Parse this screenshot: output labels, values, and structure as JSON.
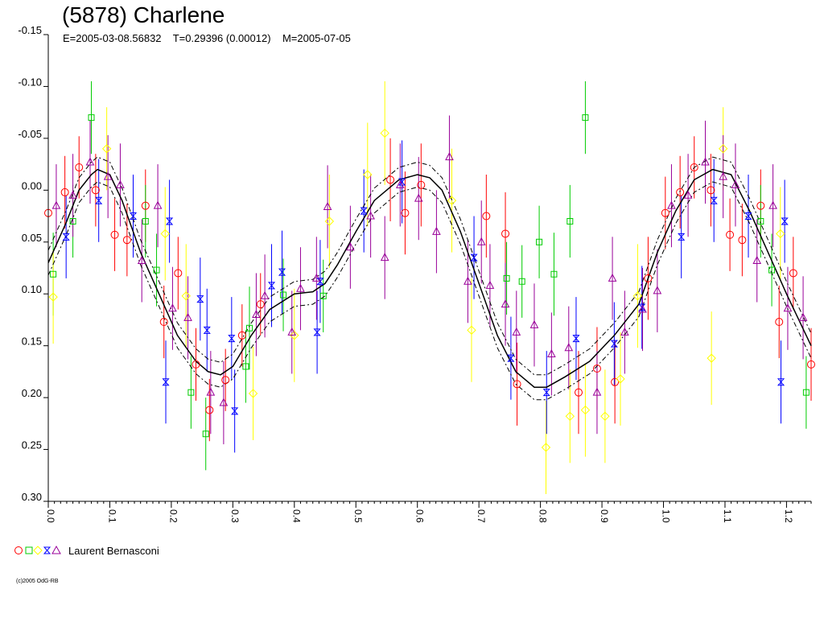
{
  "header": {
    "title": "(5878) Charlene",
    "subtitle": "E=2005-03-08.56832    T=0.29396 (0.00012)    M=2005-07-05"
  },
  "legend": {
    "label": "Laurent Bernasconi",
    "symbols": [
      "circle",
      "square",
      "diamond",
      "hourglass",
      "triangle"
    ]
  },
  "copyright": "(c)2005 OdG-RB",
  "colors": {
    "circle": "#ff0000",
    "square": "#00cc00",
    "diamond": "#ffff00",
    "hourglass": "#0000ff",
    "triangle": "#990099",
    "curve": "#000000"
  },
  "chart_data": {
    "type": "scatter",
    "title": "(5878) Charlene",
    "subtitle": "E=2005-03-08.56832    T=0.29396 (0.00012)    M=2005-07-05",
    "xlabel": "",
    "ylabel": "",
    "xlim": [
      0,
      1.24
    ],
    "ylim": [
      -0.15,
      0.3
    ],
    "y_inverted": true,
    "xticks": [
      "0.0",
      "0.1",
      "0.2",
      "0.3",
      "0.4",
      "0.5",
      "0.6",
      "0.7",
      "0.8",
      "0.9",
      "1.0",
      "1.1",
      "1.2"
    ],
    "yticks": [
      "-0.15",
      "-0.10",
      "-0.05",
      "0.00",
      "0.05",
      "0.10",
      "0.15",
      "0.20",
      "0.25",
      "0.30"
    ],
    "grid": false,
    "legend_position": "bottom-left",
    "fit_curve": {
      "x": [
        0.0,
        0.03,
        0.05,
        0.07,
        0.08,
        0.1,
        0.12,
        0.15,
        0.18,
        0.21,
        0.24,
        0.26,
        0.28,
        0.3,
        0.33,
        0.36,
        0.4,
        0.43,
        0.45,
        0.47,
        0.5,
        0.53,
        0.57,
        0.6,
        0.62,
        0.64,
        0.67,
        0.7,
        0.73,
        0.76,
        0.79,
        0.81,
        0.84,
        0.88,
        0.92,
        0.96,
        0.99,
        1.02,
        1.05,
        1.08,
        1.11,
        1.14,
        1.17,
        1.2,
        1.24
      ],
      "y": [
        0.07,
        0.03,
        0.0,
        -0.015,
        -0.02,
        -0.015,
        0.01,
        0.06,
        0.1,
        0.14,
        0.165,
        0.175,
        0.178,
        0.17,
        0.14,
        0.115,
        0.1,
        0.098,
        0.09,
        0.072,
        0.04,
        0.01,
        -0.01,
        -0.015,
        -0.012,
        0.0,
        0.04,
        0.09,
        0.14,
        0.175,
        0.19,
        0.19,
        0.18,
        0.165,
        0.14,
        0.11,
        0.06,
        0.02,
        -0.01,
        -0.02,
        -0.015,
        0.02,
        0.06,
        0.1,
        0.15
      ],
      "band": 0.012
    },
    "series": [
      {
        "name": "Laurent Bernasconi",
        "marker": "circle",
        "points": [
          {
            "x": 0.0,
            "y": 0.022,
            "e": 0.035
          },
          {
            "x": 0.027,
            "y": 0.002,
            "e": 0.035
          },
          {
            "x": 0.05,
            "y": -0.022,
            "e": 0.03
          },
          {
            "x": 0.077,
            "y": 0.0,
            "e": 0.035
          },
          {
            "x": 0.108,
            "y": 0.043,
            "e": 0.035
          },
          {
            "x": 0.128,
            "y": 0.048,
            "e": 0.035
          },
          {
            "x": 0.158,
            "y": 0.015,
            "e": 0.035
          },
          {
            "x": 0.188,
            "y": 0.127,
            "e": 0.035
          },
          {
            "x": 0.211,
            "y": 0.08,
            "e": 0.035
          },
          {
            "x": 0.24,
            "y": 0.168,
            "e": 0.035
          },
          {
            "x": 0.262,
            "y": 0.212,
            "e": 0.03
          },
          {
            "x": 0.288,
            "y": 0.183,
            "e": 0.03
          },
          {
            "x": 0.315,
            "y": 0.14,
            "e": 0.03
          },
          {
            "x": 0.345,
            "y": 0.11,
            "e": 0.03
          },
          {
            "x": 0.556,
            "y": -0.01,
            "e": 0.04
          },
          {
            "x": 0.58,
            "y": 0.022,
            "e": 0.04
          },
          {
            "x": 0.606,
            "y": -0.005,
            "e": 0.04
          },
          {
            "x": 0.712,
            "y": 0.025,
            "e": 0.04
          },
          {
            "x": 0.743,
            "y": 0.042,
            "e": 0.04
          },
          {
            "x": 0.762,
            "y": 0.187,
            "e": 0.04
          },
          {
            "x": 0.862,
            "y": 0.195,
            "e": 0.04
          },
          {
            "x": 0.892,
            "y": 0.172,
            "e": 0.04
          },
          {
            "x": 0.921,
            "y": 0.185,
            "e": 0.04
          },
          {
            "x": 0.975,
            "y": 0.085,
            "e": 0.04
          },
          {
            "x": 1.003,
            "y": 0.022,
            "e": 0.035
          },
          {
            "x": 1.027,
            "y": 0.002,
            "e": 0.035
          },
          {
            "x": 1.05,
            "y": -0.022,
            "e": 0.03
          },
          {
            "x": 1.077,
            "y": 0.0,
            "e": 0.035
          },
          {
            "x": 1.108,
            "y": 0.043,
            "e": 0.035
          },
          {
            "x": 1.128,
            "y": 0.048,
            "e": 0.035
          },
          {
            "x": 1.158,
            "y": 0.015,
            "e": 0.035
          },
          {
            "x": 1.188,
            "y": 0.127,
            "e": 0.035
          },
          {
            "x": 1.211,
            "y": 0.08,
            "e": 0.035
          },
          {
            "x": 1.24,
            "y": 0.168,
            "e": 0.035
          }
        ]
      },
      {
        "name": "Laurent Bernasconi",
        "marker": "square",
        "points": [
          {
            "x": 0.008,
            "y": 0.081,
            "e": 0.04
          },
          {
            "x": 0.04,
            "y": 0.03,
            "e": 0.035
          },
          {
            "x": 0.07,
            "y": -0.07,
            "e": 0.035
          },
          {
            "x": 0.158,
            "y": 0.03,
            "e": 0.035
          },
          {
            "x": 0.176,
            "y": 0.077,
            "e": 0.035
          },
          {
            "x": 0.232,
            "y": 0.195,
            "e": 0.035
          },
          {
            "x": 0.256,
            "y": 0.235,
            "e": 0.035
          },
          {
            "x": 0.321,
            "y": 0.17,
            "e": 0.035
          },
          {
            "x": 0.327,
            "y": 0.133,
            "e": 0.04
          },
          {
            "x": 0.382,
            "y": 0.101,
            "e": 0.035
          },
          {
            "x": 0.447,
            "y": 0.102,
            "e": 0.035
          },
          {
            "x": 0.745,
            "y": 0.085,
            "e": 0.035
          },
          {
            "x": 0.77,
            "y": 0.088,
            "e": 0.035
          },
          {
            "x": 0.798,
            "y": 0.05,
            "e": 0.035
          },
          {
            "x": 0.822,
            "y": 0.081,
            "e": 0.04
          },
          {
            "x": 0.848,
            "y": 0.03,
            "e": 0.035
          },
          {
            "x": 0.873,
            "y": -0.07,
            "e": 0.035
          },
          {
            "x": 1.158,
            "y": 0.03,
            "e": 0.035
          },
          {
            "x": 1.176,
            "y": 0.077,
            "e": 0.035
          },
          {
            "x": 1.232,
            "y": 0.195,
            "e": 0.035
          }
        ]
      },
      {
        "name": "Laurent Bernasconi",
        "marker": "diamond",
        "points": [
          {
            "x": 0.008,
            "y": 0.103,
            "e": 0.045
          },
          {
            "x": 0.095,
            "y": -0.04,
            "e": 0.04
          },
          {
            "x": 0.19,
            "y": 0.042,
            "e": 0.045
          },
          {
            "x": 0.224,
            "y": 0.102,
            "e": 0.05
          },
          {
            "x": 0.333,
            "y": 0.196,
            "e": 0.045
          },
          {
            "x": 0.4,
            "y": 0.14,
            "e": 0.045
          },
          {
            "x": 0.457,
            "y": 0.03,
            "e": 0.045
          },
          {
            "x": 0.519,
            "y": -0.015,
            "e": 0.05
          },
          {
            "x": 0.547,
            "y": -0.055,
            "e": 0.05
          },
          {
            "x": 0.656,
            "y": 0.01,
            "e": 0.05
          },
          {
            "x": 0.688,
            "y": 0.135,
            "e": 0.05
          },
          {
            "x": 0.809,
            "y": 0.248,
            "e": 0.045
          },
          {
            "x": 0.848,
            "y": 0.218,
            "e": 0.045
          },
          {
            "x": 0.873,
            "y": 0.212,
            "e": 0.045
          },
          {
            "x": 0.905,
            "y": 0.218,
            "e": 0.045
          },
          {
            "x": 0.93,
            "y": 0.182,
            "e": 0.045
          },
          {
            "x": 0.958,
            "y": 0.102,
            "e": 0.05
          },
          {
            "x": 1.078,
            "y": 0.162,
            "e": 0.045
          },
          {
            "x": 1.097,
            "y": -0.04,
            "e": 0.04
          },
          {
            "x": 1.19,
            "y": 0.042,
            "e": 0.045
          }
        ]
      },
      {
        "name": "Laurent Bernasconi",
        "marker": "hourglass",
        "points": [
          {
            "x": 0.029,
            "y": 0.045,
            "e": 0.04
          },
          {
            "x": 0.082,
            "y": 0.01,
            "e": 0.04
          },
          {
            "x": 0.138,
            "y": 0.025,
            "e": 0.04
          },
          {
            "x": 0.191,
            "y": 0.185,
            "e": 0.04
          },
          {
            "x": 0.197,
            "y": 0.03,
            "e": 0.04
          },
          {
            "x": 0.247,
            "y": 0.105,
            "e": 0.04
          },
          {
            "x": 0.258,
            "y": 0.135,
            "e": 0.04
          },
          {
            "x": 0.298,
            "y": 0.143,
            "e": 0.04
          },
          {
            "x": 0.303,
            "y": 0.213,
            "e": 0.04
          },
          {
            "x": 0.363,
            "y": 0.092,
            "e": 0.04
          },
          {
            "x": 0.38,
            "y": 0.079,
            "e": 0.04
          },
          {
            "x": 0.437,
            "y": 0.137,
            "e": 0.04
          },
          {
            "x": 0.442,
            "y": 0.088,
            "e": 0.04
          },
          {
            "x": 0.513,
            "y": 0.02,
            "e": 0.04
          },
          {
            "x": 0.575,
            "y": -0.008,
            "e": 0.04
          },
          {
            "x": 0.692,
            "y": 0.065,
            "e": 0.04
          },
          {
            "x": 0.752,
            "y": 0.162,
            "e": 0.04
          },
          {
            "x": 0.81,
            "y": 0.195,
            "e": 0.04
          },
          {
            "x": 0.858,
            "y": 0.143,
            "e": 0.04
          },
          {
            "x": 0.92,
            "y": 0.148,
            "e": 0.04
          },
          {
            "x": 0.965,
            "y": 0.113,
            "e": 0.04
          },
          {
            "x": 1.029,
            "y": 0.045,
            "e": 0.04
          },
          {
            "x": 1.082,
            "y": 0.01,
            "e": 0.04
          },
          {
            "x": 1.138,
            "y": 0.025,
            "e": 0.04
          },
          {
            "x": 1.191,
            "y": 0.185,
            "e": 0.04
          },
          {
            "x": 1.197,
            "y": 0.03,
            "e": 0.04
          }
        ]
      },
      {
        "name": "Laurent Bernasconi",
        "marker": "triangle",
        "points": [
          {
            "x": 0.013,
            "y": 0.015,
            "e": 0.04
          },
          {
            "x": 0.04,
            "y": 0.005,
            "e": 0.04
          },
          {
            "x": 0.068,
            "y": -0.027,
            "e": 0.04
          },
          {
            "x": 0.097,
            "y": -0.013,
            "e": 0.04
          },
          {
            "x": 0.117,
            "y": -0.005,
            "e": 0.04
          },
          {
            "x": 0.152,
            "y": 0.068,
            "e": 0.04
          },
          {
            "x": 0.178,
            "y": 0.015,
            "e": 0.04
          },
          {
            "x": 0.202,
            "y": 0.114,
            "e": 0.04
          },
          {
            "x": 0.227,
            "y": 0.123,
            "e": 0.04
          },
          {
            "x": 0.264,
            "y": 0.195,
            "e": 0.04
          },
          {
            "x": 0.285,
            "y": 0.205,
            "e": 0.04
          },
          {
            "x": 0.338,
            "y": 0.12,
            "e": 0.04
          },
          {
            "x": 0.352,
            "y": 0.102,
            "e": 0.04
          },
          {
            "x": 0.396,
            "y": 0.137,
            "e": 0.04
          },
          {
            "x": 0.41,
            "y": 0.095,
            "e": 0.04
          },
          {
            "x": 0.436,
            "y": 0.085,
            "e": 0.04
          },
          {
            "x": 0.454,
            "y": 0.016,
            "e": 0.04
          },
          {
            "x": 0.491,
            "y": 0.055,
            "e": 0.04
          },
          {
            "x": 0.524,
            "y": 0.025,
            "e": 0.04
          },
          {
            "x": 0.547,
            "y": 0.065,
            "e": 0.04
          },
          {
            "x": 0.572,
            "y": -0.005,
            "e": 0.04
          },
          {
            "x": 0.602,
            "y": 0.008,
            "e": 0.04
          },
          {
            "x": 0.631,
            "y": 0.04,
            "e": 0.04
          },
          {
            "x": 0.652,
            "y": -0.032,
            "e": 0.04
          },
          {
            "x": 0.682,
            "y": 0.088,
            "e": 0.04
          },
          {
            "x": 0.704,
            "y": 0.05,
            "e": 0.04
          },
          {
            "x": 0.718,
            "y": 0.092,
            "e": 0.04
          },
          {
            "x": 0.743,
            "y": 0.11,
            "e": 0.04
          },
          {
            "x": 0.761,
            "y": 0.137,
            "e": 0.04
          },
          {
            "x": 0.79,
            "y": 0.13,
            "e": 0.04
          },
          {
            "x": 0.818,
            "y": 0.158,
            "e": 0.04
          },
          {
            "x": 0.846,
            "y": 0.152,
            "e": 0.04
          },
          {
            "x": 0.892,
            "y": 0.195,
            "e": 0.04
          },
          {
            "x": 0.917,
            "y": 0.085,
            "e": 0.04
          },
          {
            "x": 0.937,
            "y": 0.137,
            "e": 0.04
          },
          {
            "x": 0.966,
            "y": 0.115,
            "e": 0.04
          },
          {
            "x": 0.99,
            "y": 0.097,
            "e": 0.04
          },
          {
            "x": 1.013,
            "y": 0.015,
            "e": 0.04
          },
          {
            "x": 1.04,
            "y": 0.005,
            "e": 0.04
          },
          {
            "x": 1.068,
            "y": -0.027,
            "e": 0.04
          },
          {
            "x": 1.097,
            "y": -0.013,
            "e": 0.04
          },
          {
            "x": 1.117,
            "y": -0.005,
            "e": 0.04
          },
          {
            "x": 1.152,
            "y": 0.068,
            "e": 0.04
          },
          {
            "x": 1.178,
            "y": 0.015,
            "e": 0.04
          },
          {
            "x": 1.202,
            "y": 0.114,
            "e": 0.04
          },
          {
            "x": 1.227,
            "y": 0.123,
            "e": 0.04
          }
        ]
      }
    ]
  }
}
